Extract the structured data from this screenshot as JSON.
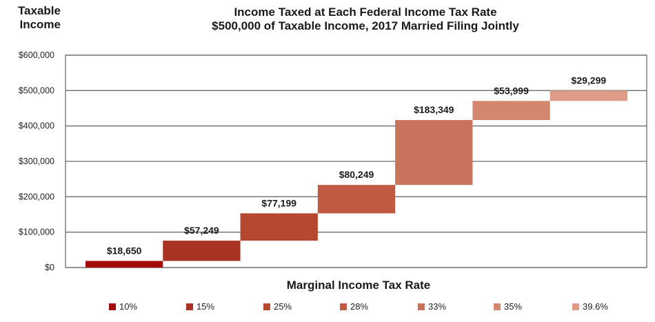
{
  "chart_data": {
    "type": "bar",
    "subtype": "waterfall",
    "title": "Income Taxed at Each Federal Income Tax Rate",
    "subtitle": "$500,000 of Taxable Income, 2017 Married Filing Jointly",
    "ylabel_line1": "Taxable",
    "ylabel_line2": "Income",
    "xlabel": "Marginal Income Tax Rate",
    "ylim": [
      0,
      600000
    ],
    "yticks": [
      0,
      100000,
      200000,
      300000,
      400000,
      500000,
      600000
    ],
    "ytick_labels": [
      "$0",
      "$100,000",
      "$200,000",
      "$300,000",
      "$400,000",
      "$500,000",
      "$600,000"
    ],
    "grid": true,
    "legend_position": "bottom",
    "categories": [
      "10%",
      "15%",
      "25%",
      "28%",
      "33%",
      "35%",
      "39.6%"
    ],
    "bar_start": [
      0,
      18650,
      75900,
      153100,
      233350,
      416700,
      470700
    ],
    "bar_end": [
      18650,
      75900,
      153100,
      233350,
      416700,
      470700,
      500000
    ],
    "values": [
      18650,
      57249,
      77199,
      80249,
      183349,
      53999,
      29299
    ],
    "data_labels": [
      "$18,650",
      "$57,249",
      "$77,199",
      "$80,249",
      "$183,349",
      "$53,999",
      "$29,299"
    ],
    "colors": [
      "#a50a0a",
      "#a83323",
      "#b64731",
      "#c15a42",
      "#c8735b",
      "#d3876f",
      "#dc9c88"
    ]
  }
}
